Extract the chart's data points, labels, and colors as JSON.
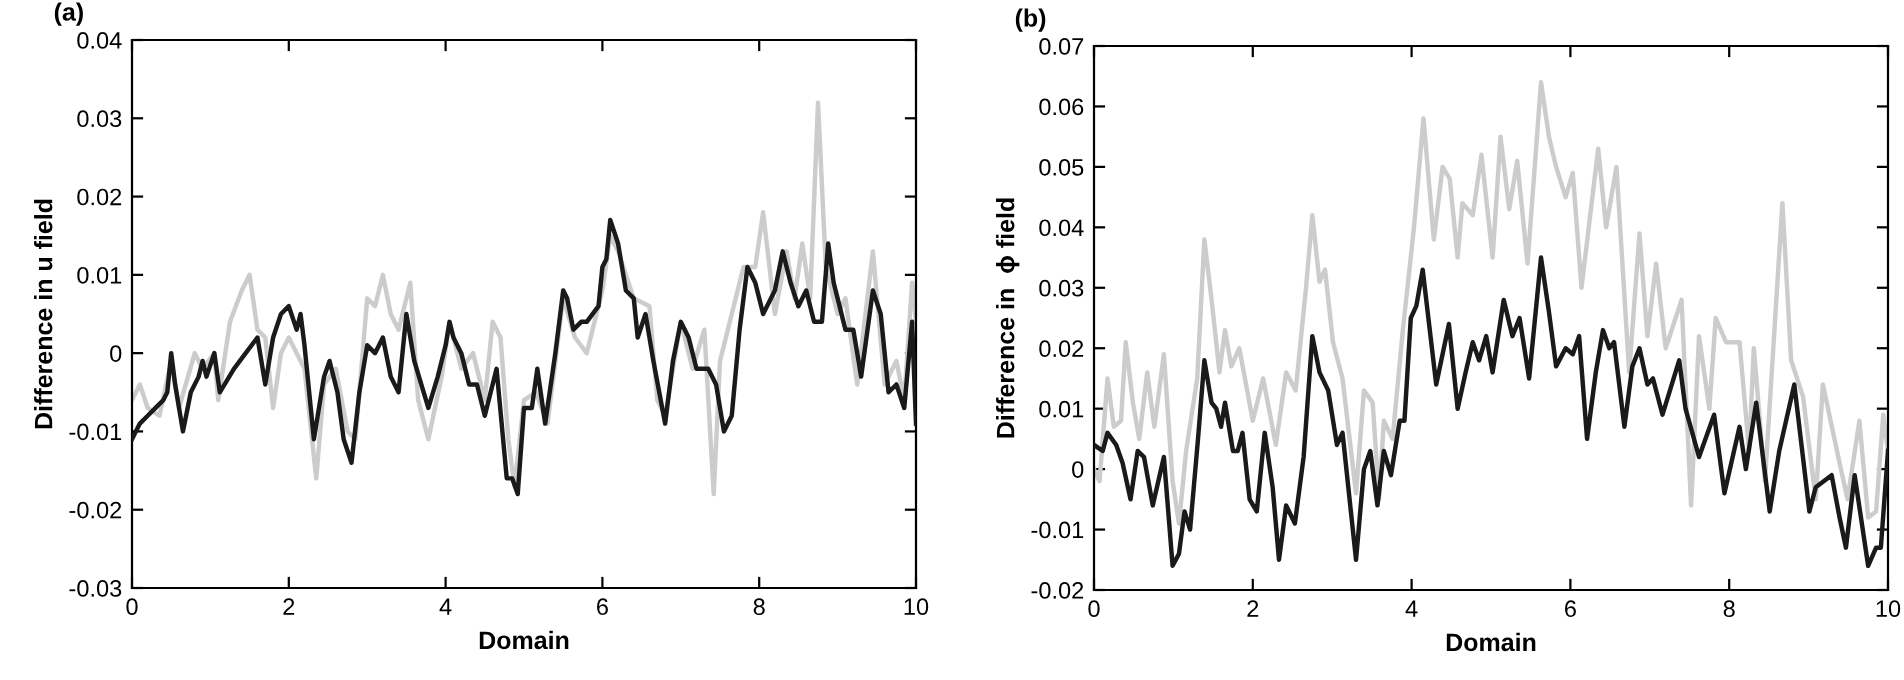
{
  "chart_data": [
    {
      "type": "line",
      "title": "(a)",
      "xlabel": "Domain",
      "ylabel": "Difference in u field",
      "xlim": [
        0,
        10
      ],
      "xticks": [
        0,
        2,
        4,
        6,
        8,
        10
      ],
      "ylim": [
        -0.03,
        0.04
      ],
      "yticks": [
        -0.03,
        -0.02,
        -0.01,
        0,
        0.01,
        0.02,
        0.03,
        0.04
      ],
      "grid": false,
      "legend": false,
      "series": [
        {
          "color": "#cccccc",
          "x": [
            0.0,
            0.1,
            0.2,
            0.35,
            0.5,
            0.6,
            0.8,
            0.9,
            1.05,
            1.1,
            1.25,
            1.4,
            1.5,
            1.6,
            1.7,
            1.8,
            1.9,
            2.0,
            2.1,
            2.2,
            2.35,
            2.45,
            2.6,
            2.75,
            2.85,
            3.0,
            3.1,
            3.2,
            3.3,
            3.4,
            3.55,
            3.65,
            3.78,
            3.95,
            4.05,
            4.2,
            4.35,
            4.5,
            4.6,
            4.7,
            4.8,
            4.88,
            5.0,
            5.15,
            5.3,
            5.5,
            5.65,
            5.8,
            6.0,
            6.1,
            6.2,
            6.4,
            6.6,
            6.7,
            6.8,
            7.0,
            7.15,
            7.3,
            7.42,
            7.5,
            7.65,
            7.8,
            7.95,
            8.05,
            8.2,
            8.35,
            8.45,
            8.55,
            8.65,
            8.75,
            8.85,
            9.0,
            9.1,
            9.25,
            9.45,
            9.6,
            9.75,
            9.85,
            9.95,
            10.0
          ],
          "values": [
            -0.006,
            -0.004,
            -0.007,
            -0.008,
            -0.001,
            -0.007,
            0.0,
            -0.002,
            0.0,
            -0.006,
            0.004,
            0.008,
            0.01,
            0.003,
            0.002,
            -0.007,
            0.0,
            0.002,
            0.0,
            -0.002,
            -0.016,
            -0.004,
            -0.002,
            -0.01,
            -0.011,
            0.007,
            0.006,
            0.01,
            0.005,
            0.003,
            0.009,
            -0.006,
            -0.011,
            -0.003,
            0.004,
            -0.002,
            0.0,
            -0.006,
            0.004,
            0.002,
            -0.011,
            -0.017,
            -0.006,
            -0.005,
            -0.009,
            0.007,
            0.002,
            0.0,
            0.008,
            0.015,
            0.013,
            0.007,
            0.006,
            -0.006,
            -0.008,
            0.004,
            -0.002,
            0.003,
            -0.018,
            -0.001,
            0.005,
            0.011,
            0.011,
            0.018,
            0.005,
            0.013,
            0.007,
            0.014,
            0.007,
            0.032,
            0.011,
            0.005,
            0.007,
            -0.004,
            0.013,
            -0.004,
            -0.001,
            -0.006,
            0.009,
            0.004
          ]
        },
        {
          "color": "#1a1a1a",
          "x": [
            0.0,
            0.1,
            0.2,
            0.3,
            0.4,
            0.45,
            0.5,
            0.55,
            0.65,
            0.75,
            0.85,
            0.9,
            0.95,
            1.05,
            1.12,
            1.3,
            1.45,
            1.6,
            1.7,
            1.8,
            1.9,
            2.0,
            2.1,
            2.15,
            2.2,
            2.32,
            2.45,
            2.52,
            2.62,
            2.7,
            2.8,
            2.9,
            3.0,
            3.1,
            3.2,
            3.3,
            3.4,
            3.5,
            3.6,
            3.78,
            3.9,
            4.0,
            4.05,
            4.1,
            4.2,
            4.3,
            4.4,
            4.5,
            4.65,
            4.78,
            4.85,
            4.92,
            5.0,
            5.1,
            5.17,
            5.27,
            5.4,
            5.5,
            5.55,
            5.63,
            5.73,
            5.8,
            5.95,
            6.0,
            6.05,
            6.1,
            6.2,
            6.3,
            6.4,
            6.45,
            6.55,
            6.65,
            6.8,
            6.9,
            7.0,
            7.1,
            7.2,
            7.35,
            7.45,
            7.55,
            7.65,
            7.75,
            7.85,
            7.95,
            8.05,
            8.2,
            8.3,
            8.4,
            8.5,
            8.6,
            8.7,
            8.8,
            8.88,
            8.95,
            9.0,
            9.1,
            9.2,
            9.3,
            9.45,
            9.55,
            9.65,
            9.75,
            9.85,
            9.95,
            10.0
          ],
          "values": [
            -0.011,
            -0.009,
            -0.008,
            -0.007,
            -0.006,
            -0.005,
            0.0,
            -0.004,
            -0.01,
            -0.005,
            -0.003,
            -0.001,
            -0.003,
            0.0,
            -0.005,
            -0.002,
            0.0,
            0.002,
            -0.004,
            0.002,
            0.005,
            0.006,
            0.003,
            0.005,
            0.001,
            -0.011,
            -0.003,
            -0.001,
            -0.005,
            -0.011,
            -0.014,
            -0.005,
            0.001,
            0.0,
            0.002,
            -0.003,
            -0.005,
            0.005,
            -0.001,
            -0.007,
            -0.003,
            0.001,
            0.004,
            0.002,
            0.0,
            -0.004,
            -0.004,
            -0.008,
            -0.002,
            -0.016,
            -0.016,
            -0.018,
            -0.007,
            -0.007,
            -0.002,
            -0.009,
            0.0,
            0.008,
            0.007,
            0.003,
            0.004,
            0.004,
            0.006,
            0.011,
            0.012,
            0.017,
            0.014,
            0.008,
            0.007,
            0.002,
            0.005,
            -0.001,
            -0.009,
            -0.001,
            0.004,
            0.002,
            -0.002,
            -0.002,
            -0.004,
            -0.01,
            -0.008,
            0.003,
            0.011,
            0.009,
            0.005,
            0.008,
            0.013,
            0.009,
            0.006,
            0.008,
            0.004,
            0.004,
            0.014,
            0.009,
            0.007,
            0.003,
            0.003,
            -0.003,
            0.008,
            0.005,
            -0.005,
            -0.004,
            -0.007,
            0.004,
            -0.009
          ]
        }
      ]
    },
    {
      "type": "line",
      "title": "(b)",
      "xlabel": "Domain",
      "ylabel": "Difference in  ϕ field",
      "xlim": [
        0,
        10
      ],
      "xticks": [
        0,
        2,
        4,
        6,
        8,
        10
      ],
      "ylim": [
        -0.02,
        0.07
      ],
      "yticks": [
        -0.02,
        -0.01,
        0,
        0.01,
        0.02,
        0.03,
        0.04,
        0.05,
        0.06,
        0.07
      ],
      "grid": false,
      "legend": false,
      "series": [
        {
          "color": "#cccccc",
          "x": [
            0,
            0.07,
            0.17,
            0.25,
            0.34,
            0.4,
            0.49,
            0.57,
            0.67,
            0.76,
            0.88,
            0.99,
            1.07,
            1.16,
            1.3,
            1.39,
            1.49,
            1.58,
            1.65,
            1.73,
            1.83,
            2.0,
            2.13,
            2.29,
            2.42,
            2.54,
            2.67,
            2.75,
            2.84,
            2.91,
            3.01,
            3.13,
            3.3,
            3.4,
            3.51,
            3.59,
            3.65,
            3.76,
            3.89,
            4.03,
            4.15,
            4.28,
            4.39,
            4.48,
            4.58,
            4.64,
            4.77,
            4.88,
            5.02,
            5.12,
            5.23,
            5.33,
            5.46,
            5.63,
            5.73,
            5.82,
            5.94,
            6.03,
            6.14,
            6.35,
            6.45,
            6.58,
            6.74,
            6.87,
            6.97,
            7.08,
            7.2,
            7.4,
            7.52,
            7.62,
            7.75,
            7.83,
            7.96,
            8.13,
            8.25,
            8.31,
            8.45,
            8.67,
            8.78,
            8.93,
            9.09,
            9.18,
            9.39,
            9.49,
            9.64,
            9.75,
            9.85,
            9.94,
            10
          ],
          "values": [
            0.0,
            -0.002,
            0.015,
            0.007,
            0.008,
            0.021,
            0.011,
            0.005,
            0.016,
            0.007,
            0.019,
            -0.002,
            -0.009,
            0.003,
            0.015,
            0.038,
            0.027,
            0.016,
            0.023,
            0.017,
            0.02,
            0.008,
            0.015,
            0.004,
            0.016,
            0.013,
            0.03,
            0.042,
            0.031,
            0.033,
            0.021,
            0.015,
            -0.004,
            0.013,
            0.011,
            -0.005,
            0.008,
            0.005,
            0.023,
            0.04,
            0.058,
            0.038,
            0.05,
            0.048,
            0.035,
            0.044,
            0.042,
            0.052,
            0.035,
            0.055,
            0.043,
            0.051,
            0.034,
            0.064,
            0.055,
            0.05,
            0.045,
            0.049,
            0.03,
            0.053,
            0.04,
            0.05,
            0.016,
            0.039,
            0.022,
            0.034,
            0.02,
            0.028,
            -0.006,
            0.022,
            0.01,
            0.025,
            0.021,
            0.021,
            0.003,
            0.02,
            -0.002,
            0.044,
            0.018,
            0.012,
            -0.005,
            0.014,
            0.001,
            -0.005,
            0.008,
            -0.008,
            -0.007,
            0.009,
            0.003
          ]
        },
        {
          "color": "#1a1a1a",
          "x": [
            0,
            0.11,
            0.17,
            0.28,
            0.36,
            0.46,
            0.55,
            0.63,
            0.74,
            0.88,
            0.99,
            1.07,
            1.14,
            1.21,
            1.31,
            1.39,
            1.48,
            1.54,
            1.6,
            1.65,
            1.75,
            1.81,
            1.87,
            1.96,
            2.05,
            2.15,
            2.25,
            2.33,
            2.42,
            2.53,
            2.64,
            2.75,
            2.84,
            2.95,
            3.06,
            3.13,
            3.3,
            3.4,
            3.48,
            3.57,
            3.65,
            3.74,
            3.85,
            3.91,
            3.99,
            4.06,
            4.14,
            4.22,
            4.31,
            4.47,
            4.58,
            4.68,
            4.77,
            4.85,
            4.94,
            5.02,
            5.16,
            5.27,
            5.36,
            5.48,
            5.63,
            5.73,
            5.82,
            5.94,
            6.03,
            6.11,
            6.21,
            6.32,
            6.41,
            6.49,
            6.55,
            6.68,
            6.78,
            6.87,
            6.97,
            7.04,
            7.16,
            7.37,
            7.45,
            7.62,
            7.81,
            7.94,
            8.13,
            8.21,
            8.34,
            8.51,
            8.63,
            8.82,
            9.01,
            9.09,
            9.29,
            9.39,
            9.47,
            9.58,
            9.75,
            9.85,
            9.91,
            10
          ],
          "values": [
            0.004,
            0.003,
            0.006,
            0.004,
            0.001,
            -0.005,
            0.003,
            0.002,
            -0.006,
            0.002,
            -0.016,
            -0.014,
            -0.007,
            -0.01,
            0.005,
            0.018,
            0.011,
            0.01,
            0.007,
            0.011,
            0.003,
            0.003,
            0.006,
            -0.005,
            -0.007,
            0.006,
            -0.003,
            -0.015,
            -0.006,
            -0.009,
            0.002,
            0.022,
            0.016,
            0.013,
            0.004,
            0.006,
            -0.015,
            0.0,
            0.003,
            -0.006,
            0.003,
            -0.001,
            0.008,
            0.008,
            0.025,
            0.027,
            0.033,
            0.024,
            0.014,
            0.024,
            0.01,
            0.016,
            0.021,
            0.018,
            0.022,
            0.016,
            0.028,
            0.022,
            0.025,
            0.015,
            0.035,
            0.026,
            0.017,
            0.02,
            0.019,
            0.022,
            0.005,
            0.016,
            0.023,
            0.02,
            0.021,
            0.007,
            0.017,
            0.02,
            0.014,
            0.015,
            0.009,
            0.018,
            0.01,
            0.002,
            0.009,
            -0.004,
            0.007,
            0.0,
            0.011,
            -0.007,
            0.003,
            0.014,
            -0.007,
            -0.003,
            -0.001,
            -0.008,
            -0.013,
            -0.001,
            -0.016,
            -0.013,
            -0.013,
            0.003
          ]
        }
      ]
    }
  ]
}
